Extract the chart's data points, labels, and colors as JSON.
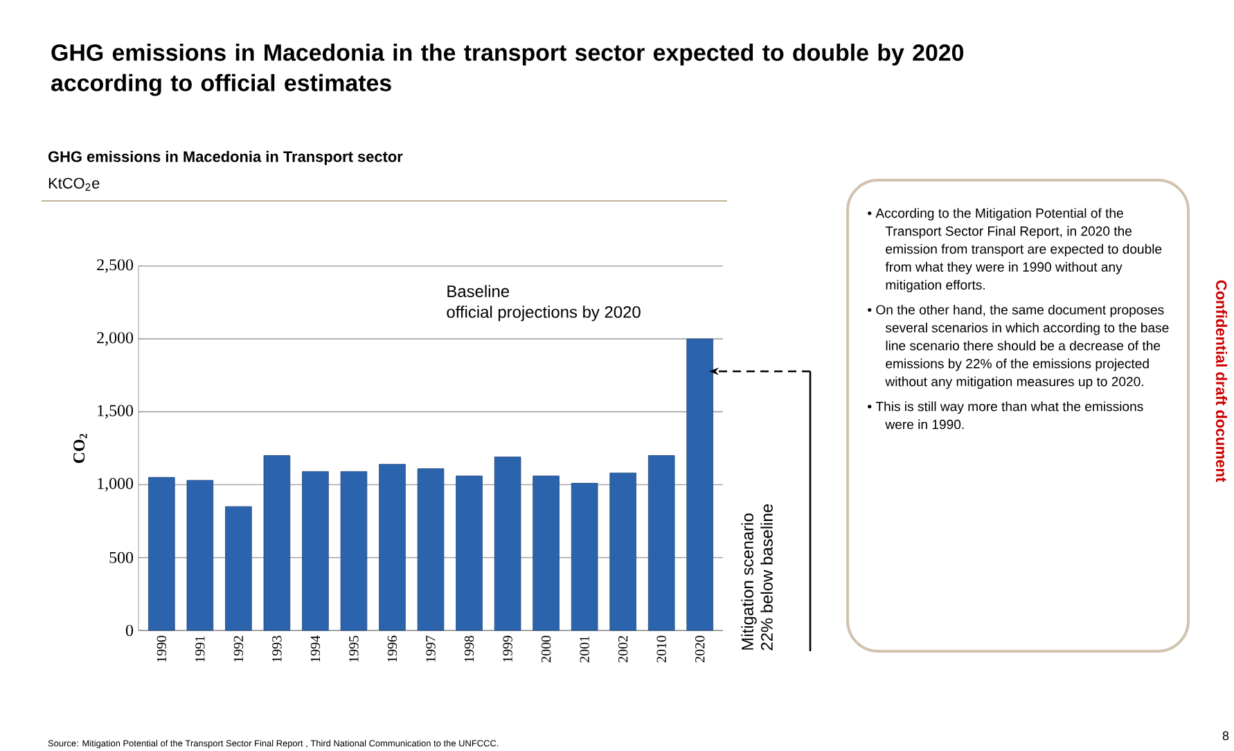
{
  "chart_data": {
    "type": "bar",
    "title": "GHG emissions in Macedonia in the transport sector expected to double by 2020 according to official estimates",
    "subtitle": "GHG emissions in Macedonia in Transport sector",
    "ylabel": "CO$_{2}$",
    "categories": [
      "1990",
      "1991",
      "1992",
      "1993",
      "1994",
      "1995",
      "1996",
      "1997",
      "1998",
      "1999",
      "2000",
      "2001",
      "2002",
      "2010",
      "2020"
    ],
    "values": [
      1050,
      1030,
      850,
      1200,
      1090,
      1090,
      1140,
      1110,
      1060,
      1190,
      1060,
      1010,
      1080,
      1200,
      2000
    ],
    "color": "#2b63ad",
    "ylim": [
      0,
      2500
    ],
    "yticks": [
      0,
      500,
      {
        "value": 1000,
        "label": "1,000"
      },
      {
        "value": 1500,
        "label": "1,500"
      },
      {
        "value": 2000,
        "label": "2,000"
      },
      {
        "value": 2500,
        "label": "2,500"
      }
    ],
    "grid": "y",
    "annotations": [
      "KtCO$_{2}$e",
      "Baseline\nofficial projections by 2020",
      "Mitigation scenario\n22% below baseline",
      "• According to the Mitigation Potential of the Transport Sector Final Report, in 2020 the emission from transport are expected to double from what they were in 1990 without any mitigation efforts.",
      "• On the other hand, the same document proposes several scenarios in which according to the base line scenario there should be a decrease of the emissions by 22% of the emissions projected without any mitigation measures up to 2020.",
      "• This is still way more than what the emissions were in 1990.",
      "Confidential draft document",
      "Source: Mitigation Potential of the Transport Sector Final Report , Third National Communication to the UNFCCC.",
      "8"
    ]
  }
}
